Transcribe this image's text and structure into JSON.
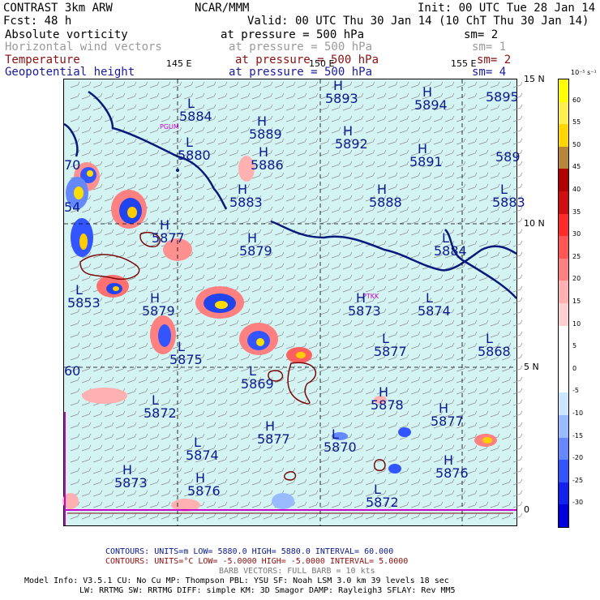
{
  "header": {
    "model": "CONTRAST   3km ARW",
    "org": "NCAR/MMM",
    "init": "Init: 00 UTC Tue 28 Jan 14",
    "fcst": "Fcst:    48 h",
    "valid": "Valid: 00 UTC Thu 30 Jan 14 (10 ChT Thu 30 Jan 14)"
  },
  "fields": [
    {
      "name": "Absolute vorticity",
      "level": "at pressure =  500 hPa",
      "sm": "sm= 2",
      "color": "#000000"
    },
    {
      "name": "Horizontal wind vectors",
      "level": "at pressure =  500 hPa",
      "sm": "sm= 1",
      "color": "#9a9a9a"
    },
    {
      "name": "Temperature",
      "level": "at pressure =  500 hPa",
      "sm": "sm= 2",
      "color": "#8b1010"
    },
    {
      "name": "Geopotential height",
      "level": "at pressure =  500 hPa",
      "sm": "sm= 4",
      "color": "#1a1a9c"
    }
  ],
  "axes": {
    "lon_labels": [
      "145 E",
      "150 E",
      "155 E"
    ],
    "lat_labels": [
      "15 N",
      "10 N",
      "5 N",
      "0"
    ]
  },
  "stations": [
    "PGUM",
    "PTKK"
  ],
  "height_labels": [
    {
      "t": "H",
      "v": "5893"
    },
    {
      "t": "H",
      "v": "5894"
    },
    {
      "t": "L",
      "v": "5884"
    },
    {
      "t": "H",
      "v": "5889"
    },
    {
      "t": "H",
      "v": "5892"
    },
    {
      "t": "L",
      "v": "5880"
    },
    {
      "t": "H",
      "v": "5891"
    },
    {
      "t": "H",
      "v": "5886"
    },
    {
      "t": "H",
      "v": "5883"
    },
    {
      "t": "H",
      "v": "5888"
    },
    {
      "t": "L",
      "v": "5883"
    },
    {
      "t": "H",
      "v": "5877"
    },
    {
      "t": "H",
      "v": "5879"
    },
    {
      "t": "L",
      "v": "5884"
    },
    {
      "t": "L",
      "v": "5853"
    },
    {
      "t": "H",
      "v": "5879"
    },
    {
      "t": "H",
      "v": "5873"
    },
    {
      "t": "L",
      "v": "5874"
    },
    {
      "t": "L",
      "v": "5875"
    },
    {
      "t": "L",
      "v": "5877"
    },
    {
      "t": "L",
      "v": "5868"
    },
    {
      "t": "L",
      "v": "5869"
    },
    {
      "t": "H",
      "v": "5878"
    },
    {
      "t": "L",
      "v": "5872"
    },
    {
      "t": "H",
      "v": "5877"
    },
    {
      "t": "H",
      "v": "5877"
    },
    {
      "t": "L",
      "v": "5870"
    },
    {
      "t": "L",
      "v": "5874"
    },
    {
      "t": "H",
      "v": "5876"
    },
    {
      "t": "H",
      "v": "5873"
    },
    {
      "t": "H",
      "v": "5876"
    },
    {
      "t": "L",
      "v": "5872"
    },
    {
      "t": "",
      "v": "5895"
    },
    {
      "t": "",
      "v": "589"
    },
    {
      "t": "",
      "v": "70"
    },
    {
      "t": "",
      "v": "54"
    },
    {
      "t": "",
      "v": "60"
    }
  ],
  "colorbar": {
    "unit": "10⁻⁵ s⁻¹",
    "levels": [
      "60",
      "55",
      "50",
      "45",
      "40",
      "35",
      "30",
      "25",
      "20",
      "15",
      "10",
      "5",
      "0",
      "-5",
      "-10",
      "-15",
      "-20",
      "-25",
      "-30"
    ],
    "colors": [
      "#ffff00",
      "#ffee50",
      "#ffd700",
      "#b8863b",
      "#b00000",
      "#d01010",
      "#ff2a2a",
      "#ff5555",
      "#ff8080",
      "#ffb0b0",
      "#ffd0d0",
      "#ffffff",
      "#ffffff",
      "#ffffff",
      "#cce6ff",
      "#99bbff",
      "#6688ff",
      "#3355ff",
      "#1122ee",
      "#0000dd"
    ]
  },
  "footer": {
    "line1": "CONTOURS:  UNITS=m  LOW=  5880.0       HIGH=  5880.0       INTERVAL=   60.000",
    "line2": "CONTOURS:  UNITS=°C  LOW= -5.0000      HIGH= -5.0000      INTERVAL=    5.0000",
    "line3": "BARB VECTORS:  FULL BARB = 10 kts",
    "line4": "Model Info: V3.5.1    CU: No Cu     MP: Thompson     PBL: YSU      SF: Noah LSM     3.0 km   39 levels   18 sec",
    "line5": "LW: RRTMG    SW: RRTMG   DIFF: simple KM: 3D Smagor DAMP: Rayleigh3  SFLAY: Rev MM5"
  }
}
